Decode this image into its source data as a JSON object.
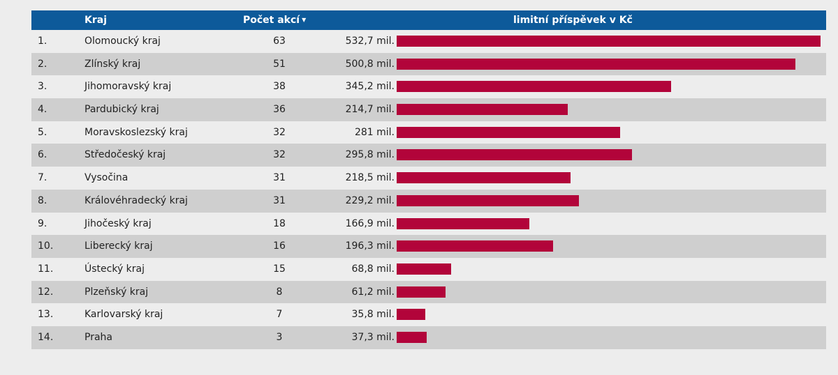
{
  "colors": {
    "header_bg": "#0d5a9a",
    "bar": "#b2043a",
    "row_alt": "#cfcfcf"
  },
  "header": {
    "kraj": "Kraj",
    "pocet": "Počet akcí",
    "sort_icon": "caret-down-icon",
    "limit": "limitní příspěvek v Kč"
  },
  "chart_data": {
    "type": "bar",
    "orientation": "horizontal",
    "title": "",
    "columns": [
      "Kraj",
      "Počet akcí",
      "limitní příspěvek v Kč"
    ],
    "max_value": 532.7,
    "rows": [
      {
        "rank": "1.",
        "kraj": "Olomoucký kraj",
        "pocet": "63",
        "value": 532.7,
        "label": "532,7 mil."
      },
      {
        "rank": "2.",
        "kraj": "Zlínský kraj",
        "pocet": "51",
        "value": 500.8,
        "label": "500,8 mil."
      },
      {
        "rank": "3.",
        "kraj": "Jihomoravský kraj",
        "pocet": "38",
        "value": 345.2,
        "label": "345,2 mil."
      },
      {
        "rank": "4.",
        "kraj": "Pardubický kraj",
        "pocet": "36",
        "value": 214.7,
        "label": "214,7 mil."
      },
      {
        "rank": "5.",
        "kraj": "Moravskoslezský kraj",
        "pocet": "32",
        "value": 281,
        "label": "281 mil."
      },
      {
        "rank": "6.",
        "kraj": "Středočeský kraj",
        "pocet": "32",
        "value": 295.8,
        "label": "295,8 mil."
      },
      {
        "rank": "7.",
        "kraj": "Vysočina",
        "pocet": "31",
        "value": 218.5,
        "label": "218,5 mil."
      },
      {
        "rank": "8.",
        "kraj": "Královéhradecký kraj",
        "pocet": "31",
        "value": 229.2,
        "label": "229,2 mil."
      },
      {
        "rank": "9.",
        "kraj": "Jihočeský kraj",
        "pocet": "18",
        "value": 166.9,
        "label": "166,9 mil."
      },
      {
        "rank": "10.",
        "kraj": "Liberecký kraj",
        "pocet": "16",
        "value": 196.3,
        "label": "196,3 mil."
      },
      {
        "rank": "11.",
        "kraj": "Ústecký kraj",
        "pocet": "15",
        "value": 68.8,
        "label": "68,8 mil."
      },
      {
        "rank": "12.",
        "kraj": "Plzeňský kraj",
        "pocet": "8",
        "value": 61.2,
        "label": "61,2 mil."
      },
      {
        "rank": "13.",
        "kraj": "Karlovarský kraj",
        "pocet": "7",
        "value": 35.8,
        "label": "35,8 mil."
      },
      {
        "rank": "14.",
        "kraj": "Praha",
        "pocet": "3",
        "value": 37.3,
        "label": "37,3 mil."
      }
    ]
  }
}
